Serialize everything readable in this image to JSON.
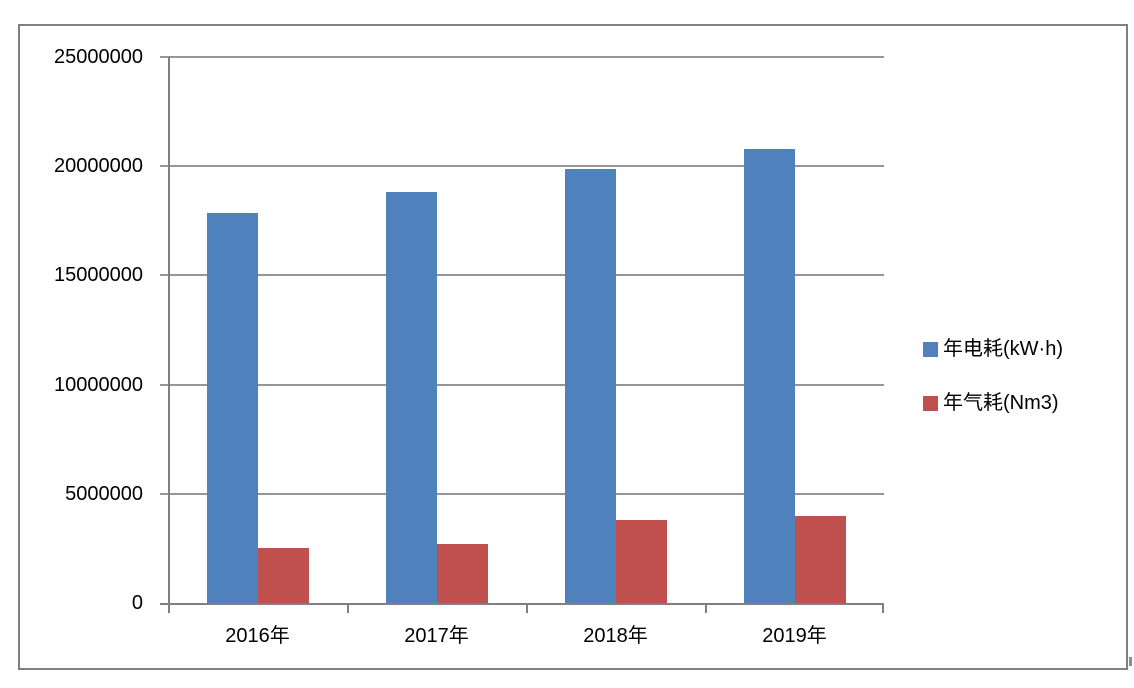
{
  "chart_data": {
    "type": "bar",
    "title": "",
    "xlabel": "",
    "ylabel": "",
    "categories": [
      "2016年",
      "2017年",
      "2018年",
      "2019年"
    ],
    "series": [
      {
        "name": "年电耗(kW·h)",
        "color": "#4F81BD",
        "values": [
          17850000,
          18800000,
          19850000,
          20800000
        ]
      },
      {
        "name": "年气耗(Nm3)",
        "color": "#C0504D",
        "values": [
          2500000,
          2700000,
          3800000,
          4000000
        ]
      }
    ],
    "ylim": [
      0,
      25000000
    ],
    "ytick_interval": 5000000,
    "ytick_labels": [
      "0",
      "5000000",
      "10000000",
      "15000000",
      "20000000",
      "25000000"
    ],
    "grid": true,
    "legend_position": "right"
  },
  "legend": {
    "items": [
      {
        "label": "年电耗(kW·h)",
        "color": "#4F81BD"
      },
      {
        "label": "年气耗(Nm3)",
        "color": "#C0504D"
      }
    ]
  },
  "colors": {
    "series_electricity": "#4F81BD",
    "series_gas": "#C0504D",
    "gridline": "#969696",
    "axis": "#808080",
    "frame_border": "#808080",
    "background": "#FFFFFF",
    "text": "#000000"
  }
}
